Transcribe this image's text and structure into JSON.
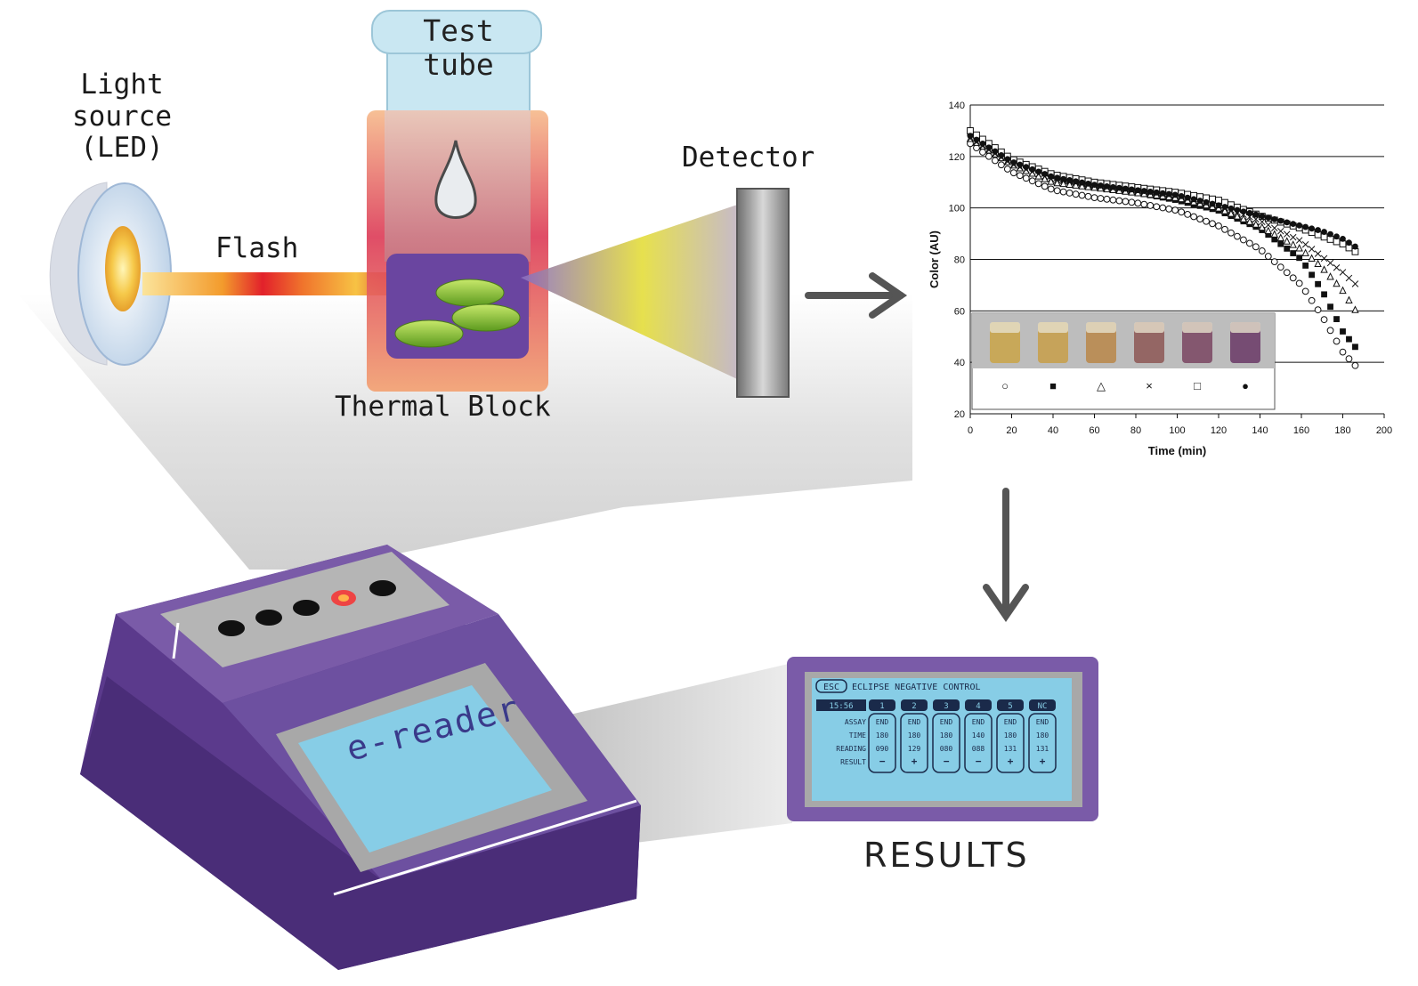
{
  "labels": {
    "light_source": "Light\nsource\n(LED)",
    "test_tube": "Test\ntube",
    "flash": "Flash",
    "detector": "Detector",
    "thermal_block": "Thermal Block",
    "results": "RESULTS",
    "ereader": "e-reader"
  },
  "screen": {
    "esc": "ESC",
    "title": "ECLIPSE NEGATIVE CONTROL",
    "first_col": "15:56",
    "columns": [
      "1",
      "2",
      "3",
      "4",
      "5",
      "NC"
    ],
    "row_labels": [
      "ASSAY",
      "TIME",
      "READING",
      "RESULT"
    ],
    "assay": [
      "END",
      "END",
      "END",
      "END",
      "END",
      "END"
    ],
    "time": [
      "180",
      "180",
      "180",
      "140",
      "180",
      "180"
    ],
    "reading": [
      "090",
      "129",
      "080",
      "088",
      "131",
      "131"
    ],
    "result": [
      "−",
      "+",
      "−",
      "−",
      "+",
      "+"
    ]
  },
  "colors": {
    "device_purple": "#5b3a8c",
    "device_light_purple": "#7a5ba8",
    "screen_blue": "#87cde6",
    "thermal_red": "#d8343a",
    "sample_purple": "#6a45a0",
    "led_yellow": "#f6c94a",
    "detector_beam": "#f4e23c"
  },
  "chart_data": {
    "type": "scatter",
    "xlabel": "Time (min)",
    "ylabel": "Color (AU)",
    "xlim": [
      0,
      200
    ],
    "ylim": [
      20,
      140
    ],
    "xticks": [
      0,
      20,
      40,
      60,
      80,
      100,
      120,
      140,
      160,
      180,
      200
    ],
    "yticks": [
      20,
      40,
      60,
      80,
      100,
      120,
      140
    ],
    "grid": "horizontal",
    "legend_symbols": [
      "○",
      "■",
      "△",
      "×",
      "□",
      "●"
    ],
    "series": [
      {
        "marker": "open-circle",
        "points": [
          [
            0,
            125
          ],
          [
            20,
            114
          ],
          [
            40,
            107
          ],
          [
            60,
            104
          ],
          [
            80,
            102
          ],
          [
            100,
            99
          ],
          [
            120,
            93
          ],
          [
            140,
            84
          ],
          [
            160,
            70
          ],
          [
            170,
            58
          ],
          [
            180,
            44
          ],
          [
            188,
            37
          ]
        ]
      },
      {
        "marker": "filled-square",
        "points": [
          [
            0,
            129
          ],
          [
            20,
            119
          ],
          [
            40,
            112
          ],
          [
            60,
            108
          ],
          [
            80,
            106
          ],
          [
            100,
            103
          ],
          [
            120,
            99
          ],
          [
            140,
            92
          ],
          [
            160,
            80
          ],
          [
            170,
            68
          ],
          [
            180,
            52
          ],
          [
            188,
            44
          ]
        ]
      },
      {
        "marker": "open-triangle",
        "points": [
          [
            0,
            127
          ],
          [
            20,
            117
          ],
          [
            40,
            110
          ],
          [
            60,
            108
          ],
          [
            80,
            106
          ],
          [
            100,
            104
          ],
          [
            120,
            100
          ],
          [
            140,
            93
          ],
          [
            160,
            84
          ],
          [
            170,
            77
          ],
          [
            180,
            68
          ],
          [
            188,
            58
          ]
        ]
      },
      {
        "marker": "cross",
        "points": [
          [
            0,
            127
          ],
          [
            20,
            117
          ],
          [
            40,
            111
          ],
          [
            60,
            109
          ],
          [
            80,
            107
          ],
          [
            100,
            105
          ],
          [
            120,
            101
          ],
          [
            140,
            95
          ],
          [
            160,
            87
          ],
          [
            170,
            81
          ],
          [
            180,
            75
          ],
          [
            188,
            69
          ]
        ]
      },
      {
        "marker": "open-square",
        "points": [
          [
            0,
            130
          ],
          [
            20,
            119
          ],
          [
            40,
            113
          ],
          [
            60,
            110
          ],
          [
            80,
            108
          ],
          [
            100,
            106
          ],
          [
            120,
            103
          ],
          [
            140,
            97
          ],
          [
            160,
            92
          ],
          [
            170,
            89
          ],
          [
            180,
            86
          ],
          [
            188,
            82
          ]
        ]
      },
      {
        "marker": "filled-circle",
        "points": [
          [
            0,
            128
          ],
          [
            20,
            118
          ],
          [
            40,
            112
          ],
          [
            60,
            109
          ],
          [
            80,
            107
          ],
          [
            100,
            105
          ],
          [
            120,
            101
          ],
          [
            140,
            97
          ],
          [
            160,
            93
          ],
          [
            170,
            91
          ],
          [
            180,
            88
          ],
          [
            188,
            84
          ]
        ]
      }
    ]
  }
}
